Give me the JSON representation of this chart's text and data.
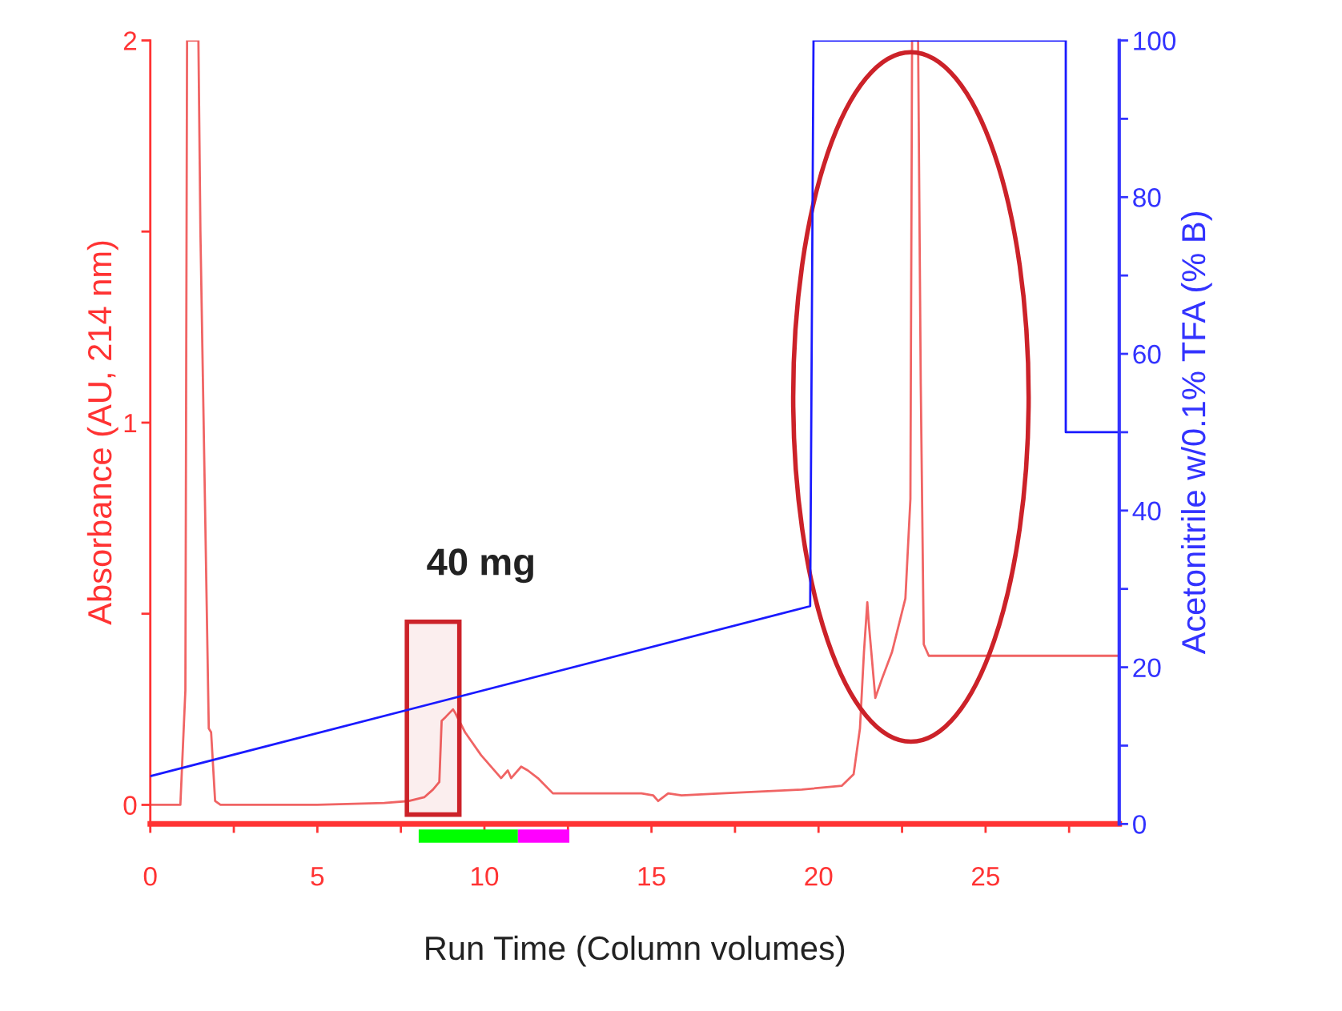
{
  "chart_data": {
    "type": "line",
    "xlabel": "Run Time (Column volumes)",
    "ylabel": "Absorbance (AU, 214 nm)",
    "y2label": "Acetonitrile w/0.1% TFA (% B)",
    "annotations": [
      "40 mg"
    ],
    "series": [
      {
        "color": "#f06464",
        "axis": "y",
        "x": [
          0,
          0.9,
          1.05,
          1.1,
          1.44,
          1.5,
          1.75,
          1.82,
          1.94,
          2.1,
          5,
          7,
          7.74,
          8.2,
          8.46,
          8.65,
          8.72,
          8.84,
          9.06,
          9.13,
          9.42,
          9.9,
          10.5,
          10.7,
          10.8,
          11.1,
          11.3,
          11.6,
          12.05,
          12.8,
          14.7,
          15.05,
          15.2,
          15.5,
          15.9,
          17.1,
          19.5,
          20.7,
          21.05,
          21.24,
          21.36,
          21.46,
          21.5,
          21.7,
          21.9,
          22.2,
          22.6,
          22.75,
          22.8,
          22.98,
          23.06,
          23.15,
          23.3,
          29
        ],
        "values": [
          0,
          0,
          0.3,
          2,
          2,
          1.5,
          0.2,
          0.19,
          0.01,
          0,
          0,
          0.005,
          0.01,
          0.02,
          0.04,
          0.06,
          0.22,
          0.23,
          0.25,
          0.24,
          0.19,
          0.13,
          0.07,
          0.09,
          0.07,
          0.1,
          0.09,
          0.07,
          0.03,
          0.03,
          0.03,
          0.025,
          0.01,
          0.03,
          0.025,
          0.03,
          0.04,
          0.05,
          0.08,
          0.2,
          0.4,
          0.53,
          0.48,
          0.28,
          0.33,
          0.4,
          0.54,
          0.8,
          2,
          2,
          1.1,
          0.42,
          0.39,
          0.39
        ]
      },
      {
        "color": "#1a1aff",
        "axis": "y2",
        "x": [
          0,
          19.75,
          19.85,
          27.4,
          27.4,
          29
        ],
        "values": [
          6.1,
          27.8,
          100,
          100,
          50,
          50
        ]
      }
    ],
    "bands": [
      {
        "axis": "x",
        "from": 7.68,
        "to": 9.25,
        "color": "#cc2229"
      }
    ],
    "xlim": [
      0,
      29
    ],
    "xticks": [
      0,
      {
        "value": 2.5,
        "label": null
      },
      5,
      {
        "value": 7.5,
        "label": null
      },
      10,
      {
        "value": 12.5,
        "label": null
      },
      15,
      {
        "value": 17.5,
        "label": null
      },
      20,
      {
        "value": 22.5,
        "label": null
      },
      25,
      {
        "value": 27.5,
        "label": null
      }
    ],
    "ylim": [
      -0.05,
      2
    ],
    "yticks": [
      0,
      {
        "value": 0.5,
        "label": null
      },
      1,
      {
        "value": 1.5,
        "label": null
      },
      2
    ],
    "y2lim": [
      0,
      100
    ],
    "y2ticks": [
      0,
      {
        "value": 10,
        "label": null
      },
      20,
      {
        "value": 30,
        "label": null
      },
      40,
      {
        "value": 50,
        "label": null
      },
      60,
      {
        "value": 70,
        "label": null
      },
      80,
      {
        "value": 90,
        "label": null
      },
      100
    ],
    "grid": false,
    "legend": false,
    "marker": "none",
    "line_style": "solid"
  }
}
